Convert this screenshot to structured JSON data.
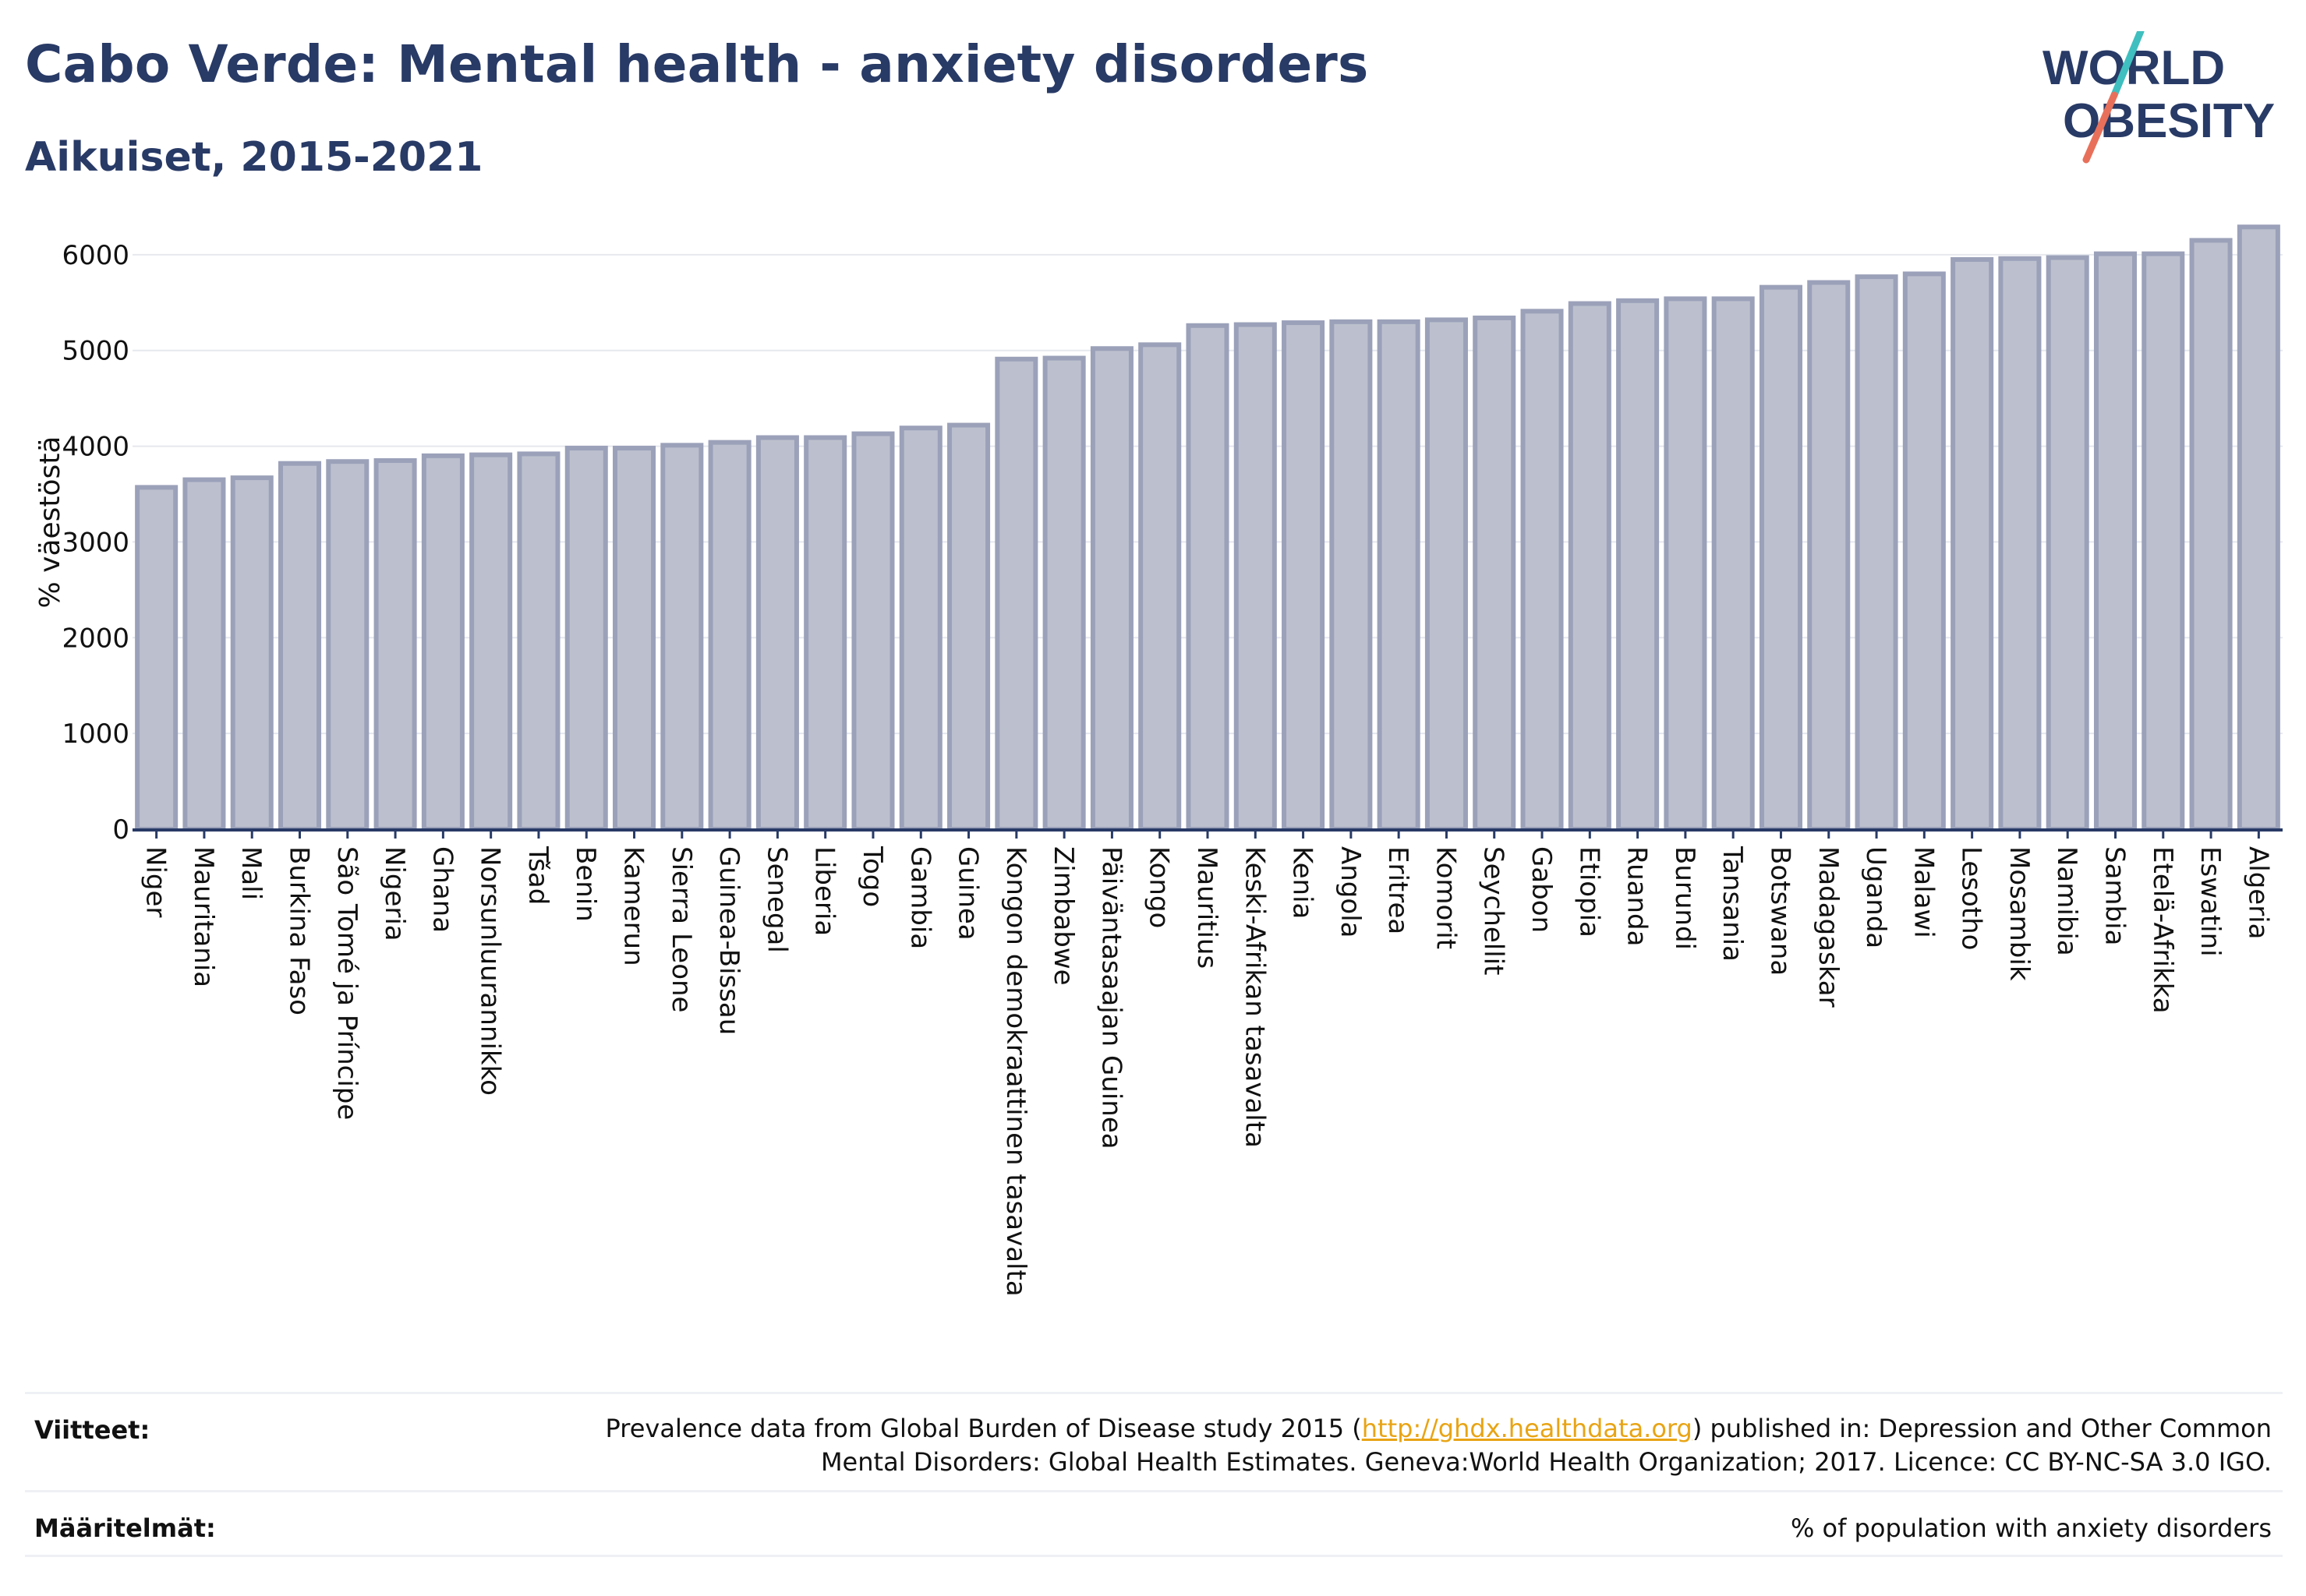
{
  "header": {
    "title": "Cabo Verde: Mental health - anxiety disorders",
    "subtitle": "Aikuiset, 2015-2021"
  },
  "logo": {
    "line1": "WORLD",
    "line2": "OBESITY",
    "accent_teal": "#3fbfbf",
    "accent_coral": "#e8705a",
    "text_color": "#283a66"
  },
  "colors": {
    "bar_fill": "#bcc0ce",
    "bar_stroke": "#9ba1b9",
    "axis": "#283a66",
    "grid": "#e6e8ee"
  },
  "chart_data": {
    "type": "bar",
    "ylabel": "% väestöstä",
    "ylim": [
      0,
      6300
    ],
    "yticks": [
      0,
      1000,
      2000,
      3000,
      4000,
      5000,
      6000
    ],
    "grid": true,
    "categories": [
      "Niger",
      "Mauritania",
      "Mali",
      "Burkina Faso",
      "São Tomé ja Príncipe",
      "Nigeria",
      "Ghana",
      "Norsunluurannikko",
      "Tšad",
      "Benin",
      "Kamerun",
      "Sierra Leone",
      "Guinea-Bissau",
      "Senegal",
      "Liberia",
      "Togo",
      "Gambia",
      "Guinea",
      "Kongon demokraattinen tasavalta",
      "Zimbabwe",
      "Päiväntasaajan Guinea",
      "Kongo",
      "Mauritius",
      "Keski-Afrikan tasavalta",
      "Kenia",
      "Angola",
      "Eritrea",
      "Komorit",
      "Seychellit",
      "Gabon",
      "Etiopia",
      "Ruanda",
      "Burundi",
      "Tansania",
      "Botswana",
      "Madagaskar",
      "Uganda",
      "Malawi",
      "Lesotho",
      "Mosambik",
      "Namibia",
      "Sambia",
      "Etelä-Afrikka",
      "Eswatini",
      "Algeria"
    ],
    "values": [
      3570,
      3650,
      3670,
      3820,
      3840,
      3850,
      3900,
      3910,
      3920,
      3980,
      3980,
      4010,
      4040,
      4090,
      4090,
      4130,
      4190,
      4220,
      4910,
      4920,
      5020,
      5060,
      5260,
      5270,
      5290,
      5300,
      5300,
      5320,
      5340,
      5410,
      5490,
      5520,
      5540,
      5540,
      5660,
      5710,
      5770,
      5800,
      5950,
      5960,
      5970,
      6010,
      6010,
      6150,
      6290
    ]
  },
  "footer": {
    "references_label": "Viitteet:",
    "references_line1_pre": "Prevalence data from Global Burden of Disease study 2015 (",
    "references_link": "http://ghdx.healthdata.org",
    "references_line1_post": ") published in: Depression and Other Common",
    "references_line2": "Mental Disorders: Global Health Estimates. Geneva:World Health Organization; 2017. Licence: CC BY-NC-SA 3.0 IGO.",
    "definitions_label": "Määritelmät:",
    "definitions_text": "% of population with anxiety disorders"
  }
}
